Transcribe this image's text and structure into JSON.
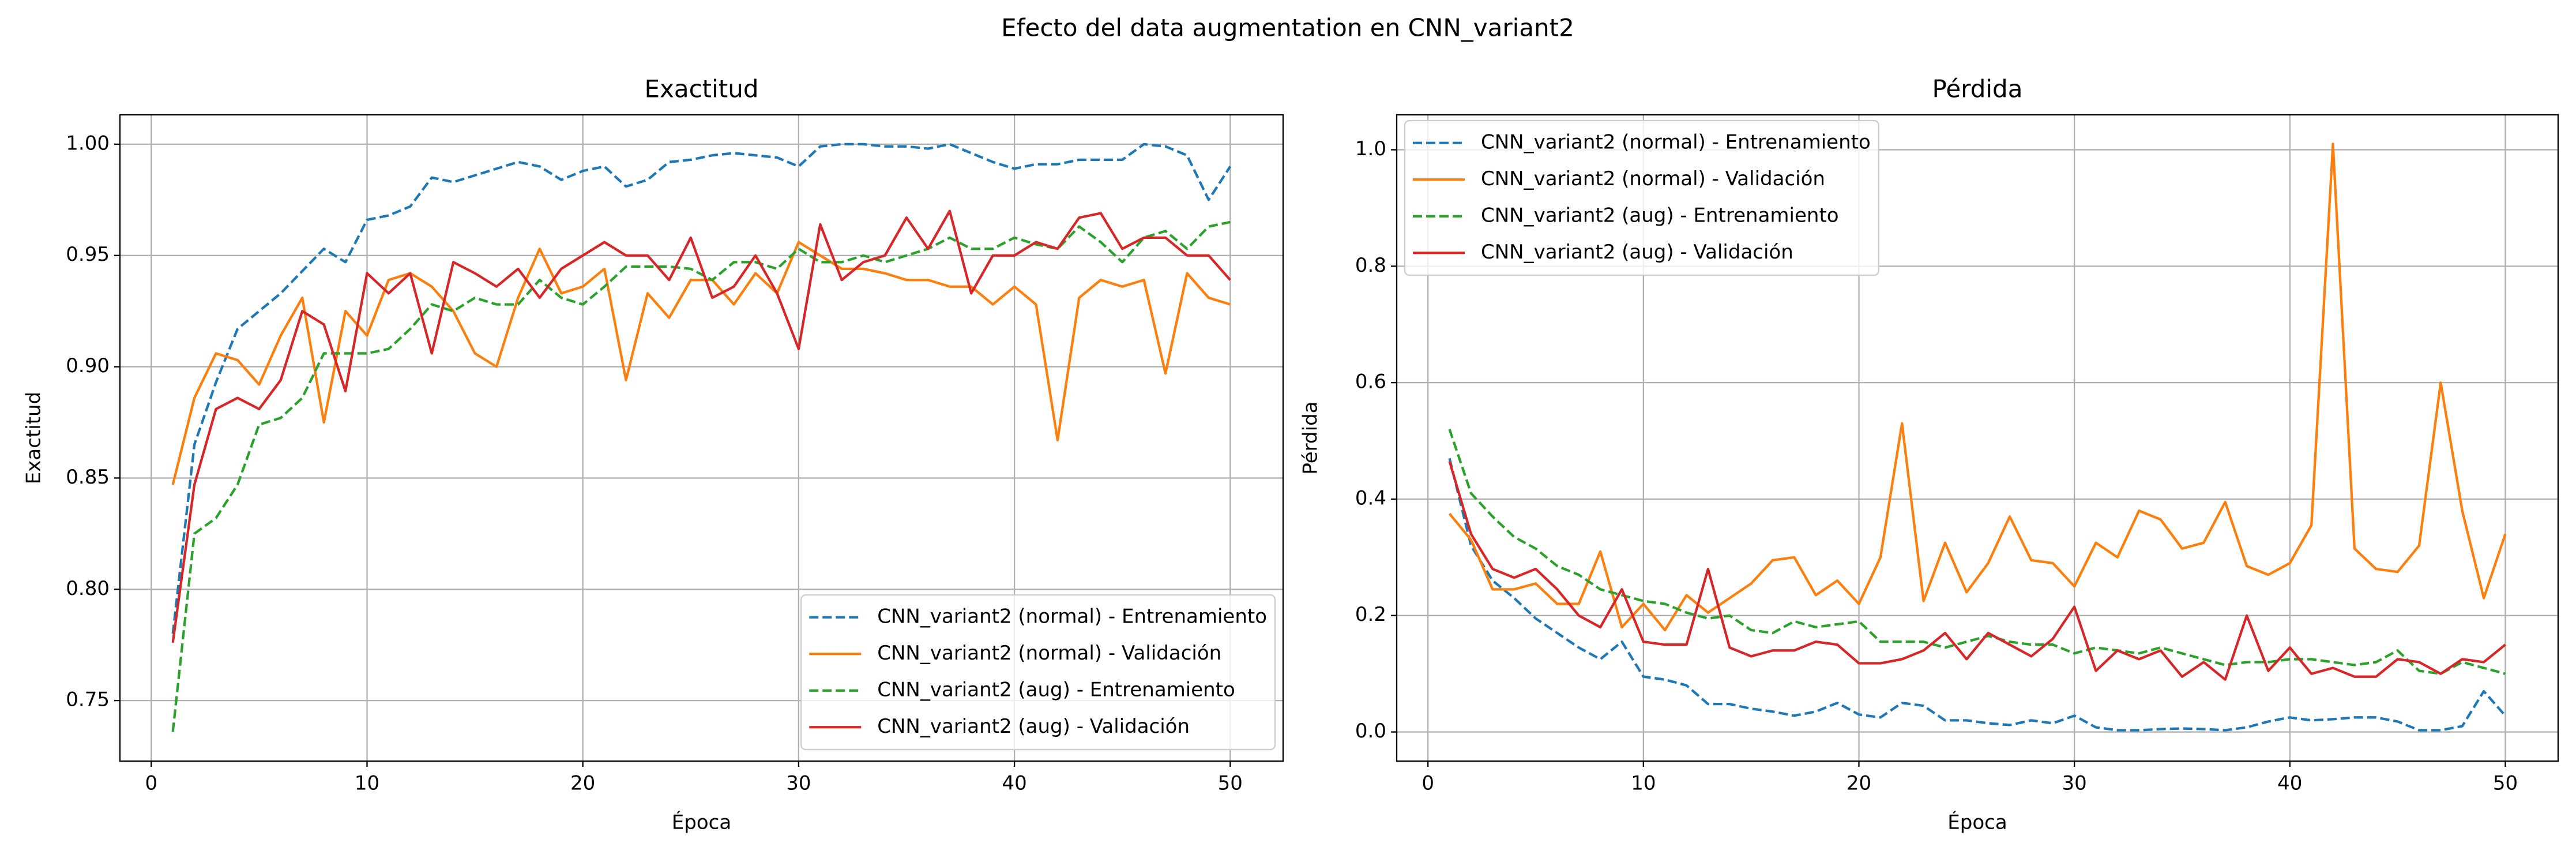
{
  "title": "Efecto del data augmentation en CNN_variant2",
  "chart_data": [
    {
      "type": "line",
      "title": "Exactitud",
      "x_label": "Época",
      "y_label": "Exactitud",
      "x": [
        1,
        2,
        3,
        4,
        5,
        6,
        7,
        8,
        9,
        10,
        11,
        12,
        13,
        14,
        15,
        16,
        17,
        18,
        19,
        20,
        21,
        22,
        23,
        24,
        25,
        26,
        27,
        28,
        29,
        30,
        31,
        32,
        33,
        34,
        35,
        36,
        37,
        38,
        39,
        40,
        41,
        42,
        43,
        44,
        45,
        46,
        47,
        48,
        49,
        50
      ],
      "xlim": [
        -1.45,
        52.45
      ],
      "xticks": [
        0,
        10,
        20,
        30,
        40,
        50
      ],
      "ylim": [
        0.7228,
        1.0132
      ],
      "yticks": [
        0.75,
        {
          "value": 0.8,
          "label": "0.80"
        },
        0.85,
        {
          "value": 0.9,
          "label": "0.90"
        },
        0.95,
        {
          "value": 1.0,
          "label": "1.00"
        }
      ],
      "grid": true,
      "legend": "lower right",
      "series": [
        {
          "name": "CNN_variant2 (normal) - Entrenamiento",
          "color": "#1f77b4",
          "linestyle": "dashed",
          "values": [
            0.78,
            0.865,
            0.893,
            0.917,
            0.925,
            0.933,
            0.943,
            0.953,
            0.947,
            0.966,
            0.968,
            0.972,
            0.985,
            0.983,
            0.986,
            0.989,
            0.992,
            0.99,
            0.984,
            0.988,
            0.99,
            0.981,
            0.984,
            0.992,
            0.993,
            0.995,
            0.996,
            0.995,
            0.994,
            0.99,
            0.999,
            1.0,
            1.0,
            0.999,
            0.999,
            0.998,
            1.0,
            0.996,
            0.992,
            0.989,
            0.991,
            0.991,
            0.993,
            0.993,
            0.993,
            1.0,
            0.999,
            0.995,
            0.975,
            0.99
          ]
        },
        {
          "name": "CNN_variant2 (normal) - Validación",
          "color": "#ff7f0e",
          "linestyle": "solid",
          "values": [
            0.847,
            0.886,
            0.906,
            0.903,
            0.892,
            0.914,
            0.931,
            0.875,
            0.925,
            0.914,
            0.939,
            0.942,
            0.936,
            0.925,
            0.906,
            0.9,
            0.931,
            0.953,
            0.933,
            0.936,
            0.944,
            0.894,
            0.933,
            0.922,
            0.939,
            0.939,
            0.928,
            0.942,
            0.933,
            0.956,
            0.95,
            0.944,
            0.944,
            0.942,
            0.939,
            0.939,
            0.936,
            0.936,
            0.928,
            0.936,
            0.928,
            0.867,
            0.931,
            0.939,
            0.936,
            0.939,
            0.897,
            0.942,
            0.931,
            0.928
          ]
        },
        {
          "name": "CNN_variant2 (aug) - Entrenamiento",
          "color": "#2ca02c",
          "linestyle": "dashed",
          "values": [
            0.736,
            0.825,
            0.832,
            0.847,
            0.874,
            0.877,
            0.886,
            0.906,
            0.906,
            0.906,
            0.908,
            0.917,
            0.928,
            0.925,
            0.931,
            0.928,
            0.928,
            0.939,
            0.931,
            0.928,
            0.936,
            0.945,
            0.945,
            0.945,
            0.944,
            0.939,
            0.947,
            0.947,
            0.944,
            0.953,
            0.947,
            0.947,
            0.95,
            0.947,
            0.95,
            0.953,
            0.958,
            0.953,
            0.953,
            0.958,
            0.955,
            0.953,
            0.963,
            0.956,
            0.947,
            0.958,
            0.961,
            0.953,
            0.963,
            0.965
          ]
        },
        {
          "name": "CNN_variant2 (aug) - Validación",
          "color": "#d62728",
          "linestyle": "solid",
          "values": [
            0.776,
            0.847,
            0.881,
            0.886,
            0.881,
            0.894,
            0.925,
            0.919,
            0.889,
            0.942,
            0.933,
            0.942,
            0.906,
            0.947,
            0.942,
            0.936,
            0.944,
            0.931,
            0.944,
            0.95,
            0.956,
            0.95,
            0.95,
            0.939,
            0.958,
            0.931,
            0.936,
            0.95,
            0.933,
            0.908,
            0.964,
            0.939,
            0.947,
            0.95,
            0.967,
            0.953,
            0.97,
            0.933,
            0.95,
            0.95,
            0.956,
            0.953,
            0.967,
            0.969,
            0.953,
            0.958,
            0.958,
            0.95,
            0.95,
            0.939
          ]
        }
      ]
    },
    {
      "type": "line",
      "title": "Pérdida",
      "x_label": "Época",
      "y_label": "Pérdida",
      "x": [
        1,
        2,
        3,
        4,
        5,
        6,
        7,
        8,
        9,
        10,
        11,
        12,
        13,
        14,
        15,
        16,
        17,
        18,
        19,
        20,
        21,
        22,
        23,
        24,
        25,
        26,
        27,
        28,
        29,
        30,
        31,
        32,
        33,
        34,
        35,
        36,
        37,
        38,
        39,
        40,
        41,
        42,
        43,
        44,
        45,
        46,
        47,
        48,
        49,
        50
      ],
      "xlim": [
        -1.45,
        52.45
      ],
      "xticks": [
        0,
        10,
        20,
        30,
        40,
        50
      ],
      "ylim": [
        -0.05,
        1.06
      ],
      "yticks": [
        {
          "value": 0,
          "label": "0.0"
        },
        0.2,
        0.4,
        0.6,
        0.8,
        {
          "value": 1.0,
          "label": "1.0"
        }
      ],
      "grid": true,
      "legend": "upper left",
      "series": [
        {
          "name": "CNN_variant2 (normal) - Entrenamiento",
          "color": "#1f77b4",
          "linestyle": "dashed",
          "values": [
            0.47,
            0.32,
            0.26,
            0.23,
            0.195,
            0.17,
            0.145,
            0.125,
            0.155,
            0.095,
            0.09,
            0.08,
            0.048,
            0.048,
            0.04,
            0.035,
            0.028,
            0.035,
            0.05,
            0.03,
            0.025,
            0.05,
            0.045,
            0.02,
            0.02,
            0.015,
            0.012,
            0.02,
            0.015,
            0.028,
            0.008,
            0.003,
            0.003,
            0.005,
            0.006,
            0.005,
            0.003,
            0.008,
            0.018,
            0.025,
            0.02,
            0.022,
            0.025,
            0.025,
            0.018,
            0.003,
            0.003,
            0.01,
            0.07,
            0.028
          ]
        },
        {
          "name": "CNN_variant2 (normal) - Validación",
          "color": "#ff7f0e",
          "linestyle": "solid",
          "values": [
            0.375,
            0.33,
            0.245,
            0.245,
            0.255,
            0.22,
            0.22,
            0.31,
            0.18,
            0.22,
            0.175,
            0.235,
            0.205,
            0.23,
            0.255,
            0.295,
            0.3,
            0.235,
            0.26,
            0.22,
            0.3,
            0.53,
            0.225,
            0.325,
            0.24,
            0.29,
            0.37,
            0.295,
            0.29,
            0.25,
            0.325,
            0.3,
            0.38,
            0.365,
            0.315,
            0.325,
            0.395,
            0.285,
            0.27,
            0.29,
            0.355,
            1.01,
            0.315,
            0.28,
            0.275,
            0.32,
            0.6,
            0.38,
            0.23,
            0.34
          ]
        },
        {
          "name": "CNN_variant2 (aug) - Entrenamiento",
          "color": "#2ca02c",
          "linestyle": "dashed",
          "values": [
            0.52,
            0.41,
            0.37,
            0.335,
            0.315,
            0.285,
            0.27,
            0.245,
            0.235,
            0.225,
            0.22,
            0.205,
            0.195,
            0.2,
            0.175,
            0.17,
            0.19,
            0.18,
            0.185,
            0.19,
            0.155,
            0.155,
            0.155,
            0.145,
            0.155,
            0.165,
            0.155,
            0.15,
            0.15,
            0.135,
            0.145,
            0.14,
            0.135,
            0.145,
            0.135,
            0.125,
            0.115,
            0.12,
            0.12,
            0.125,
            0.125,
            0.12,
            0.115,
            0.12,
            0.14,
            0.105,
            0.1,
            0.12,
            0.11,
            0.1
          ]
        },
        {
          "name": "CNN_variant2 (aug) - Validación",
          "color": "#d62728",
          "linestyle": "solid",
          "values": [
            0.465,
            0.34,
            0.28,
            0.265,
            0.28,
            0.245,
            0.2,
            0.18,
            0.245,
            0.155,
            0.15,
            0.15,
            0.28,
            0.145,
            0.13,
            0.14,
            0.14,
            0.155,
            0.15,
            0.118,
            0.118,
            0.125,
            0.14,
            0.17,
            0.125,
            0.17,
            0.15,
            0.13,
            0.16,
            0.215,
            0.105,
            0.14,
            0.125,
            0.14,
            0.095,
            0.12,
            0.09,
            0.2,
            0.105,
            0.145,
            0.1,
            0.11,
            0.095,
            0.095,
            0.125,
            0.12,
            0.1,
            0.125,
            0.12,
            0.15
          ]
        }
      ]
    }
  ]
}
